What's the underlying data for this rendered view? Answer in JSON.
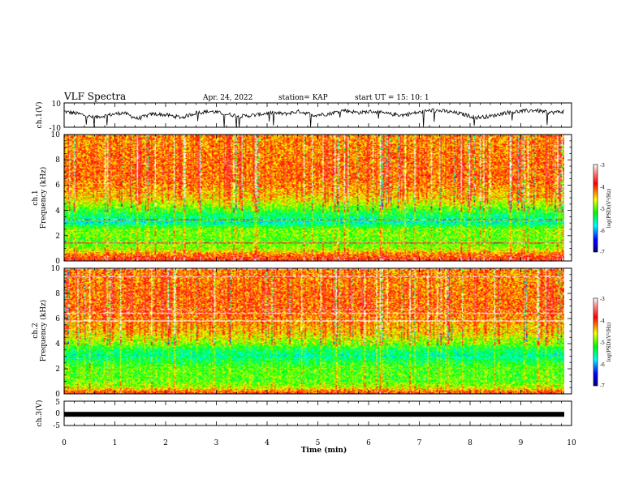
{
  "header": {
    "title": "VLF Spectra",
    "date": "Apr. 24, 2022",
    "station": "station= KAP",
    "start": "start  UT  =   15: 10: 1"
  },
  "chart_data": [
    {
      "type": "line",
      "name": "ch1-waveform",
      "ylabel": "ch.1(V)",
      "ylim": [
        -10,
        10
      ],
      "ytick_labels": [
        "10",
        "-10"
      ],
      "xlim": [
        0,
        10
      ],
      "description_values_y_approx": [
        3,
        1,
        -2,
        0,
        2,
        -3,
        1,
        0,
        -2,
        2,
        3,
        1,
        -1,
        0,
        2,
        1,
        3,
        0,
        1,
        4,
        2,
        3,
        1,
        0,
        2,
        4,
        3,
        1,
        -2,
        -1,
        2,
        3,
        4,
        2,
        3
      ]
    },
    {
      "type": "heatmap",
      "name": "ch1-spectrogram",
      "ylabel": "ch.1\nFrequency (kHz)",
      "ylabel_line1": "ch.1",
      "ylabel_line2": "Frequency (kHz)",
      "ylim": [
        0,
        10
      ],
      "ytick_labels": [
        "0",
        "2",
        "4",
        "6",
        "8",
        "10"
      ],
      "xlim": [
        0,
        10
      ],
      "colorbar": {
        "label": "log(PSD)(V²/Hz)",
        "range": [
          -7,
          -3
        ],
        "tick_labels": [
          "-3",
          "-4",
          "-5",
          "-6",
          "-7"
        ]
      },
      "freq_profile_khz": [
        0,
        0.5,
        1,
        1.5,
        2,
        2.5,
        3,
        3.5,
        4,
        4.5,
        5,
        5.5,
        6,
        6.5,
        7,
        8,
        9,
        10
      ],
      "freq_profile_logpsd": [
        -3.8,
        -4.3,
        -4.9,
        -5.1,
        -5.0,
        -5.0,
        -5.7,
        -5.5,
        -5.2,
        -4.8,
        -4.5,
        -4.4,
        -4.3,
        -4.2,
        -4.2,
        -4.2,
        -4.3,
        -4.3
      ]
    },
    {
      "type": "heatmap",
      "name": "ch2-spectrogram",
      "ylabel_line1": "ch.2",
      "ylabel_line2": "Frequency (kHz)",
      "ylim": [
        0,
        10
      ],
      "ytick_labels": [
        "0",
        "2",
        "4",
        "6",
        "8",
        "10"
      ],
      "xlim": [
        0,
        10
      ],
      "colorbar": {
        "label": "log(PSD)(V²/Hz)",
        "range": [
          -7,
          -3
        ],
        "tick_labels": [
          "-3",
          "-4",
          "-5",
          "-6",
          "-7"
        ]
      },
      "freq_profile_khz": [
        0,
        0.5,
        1,
        1.5,
        2,
        2.5,
        3,
        3.5,
        4,
        4.5,
        5,
        5.5,
        6,
        6.5,
        7,
        8,
        9,
        10
      ],
      "freq_profile_logpsd": [
        -4.0,
        -4.8,
        -5.1,
        -5.1,
        -5.1,
        -5.3,
        -5.6,
        -5.4,
        -5.0,
        -4.7,
        -4.5,
        -4.4,
        -4.3,
        -4.2,
        -4.2,
        -4.2,
        -4.3,
        -4.3
      ]
    },
    {
      "type": "line",
      "name": "ch3-waveform",
      "ylabel": "ch.3(V)",
      "ylim": [
        -5,
        5
      ],
      "ytick_labels": [
        "5",
        "0",
        "-5"
      ],
      "xlim": [
        0,
        10
      ],
      "level_v": -0.4
    }
  ],
  "xaxis": {
    "label": "Time  (min)",
    "tick_labels": [
      "0",
      "1",
      "2",
      "3",
      "4",
      "5",
      "6",
      "7",
      "8",
      "9",
      "10"
    ],
    "data_end_min": 9.85
  },
  "colors": {
    "scale": [
      "#000080",
      "#0000ff",
      "#00ffff",
      "#00ff00",
      "#ffff00",
      "#ff0000",
      "#ff8080",
      "#ffffff"
    ]
  }
}
